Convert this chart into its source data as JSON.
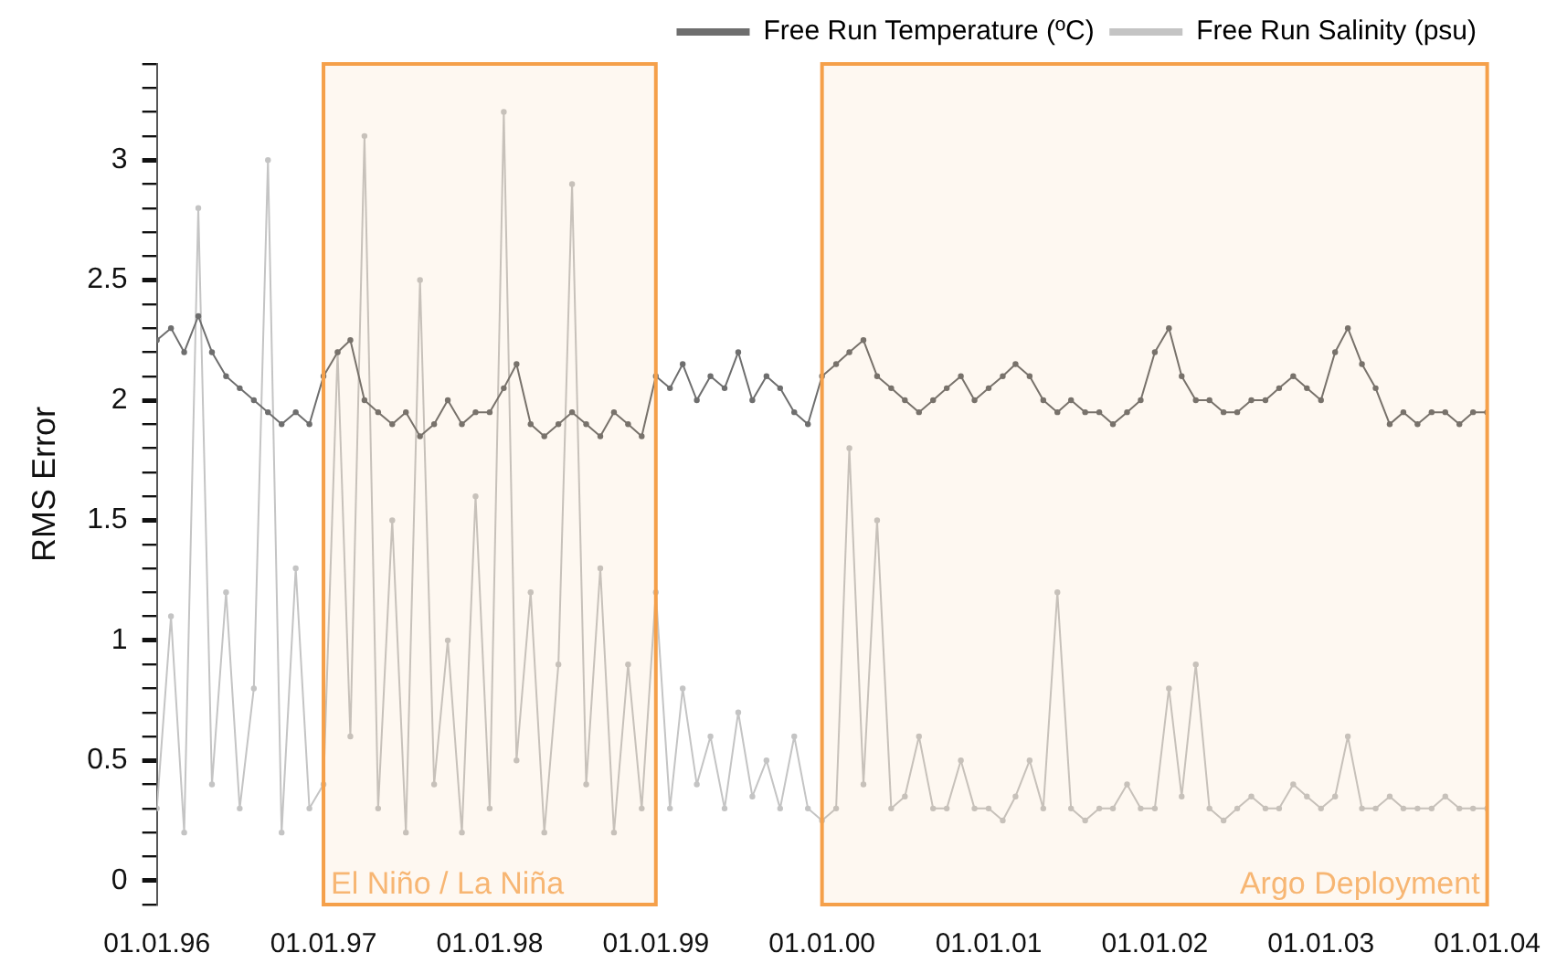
{
  "chart_data": {
    "type": "line",
    "ylabel": "RMS Error",
    "marker": "circle",
    "line_style": "solid",
    "legend": "top right",
    "x": [
      "1996-01",
      "1996-02",
      "1996-03",
      "1996-04",
      "1996-05",
      "1996-06",
      "1996-07",
      "1996-08",
      "1996-09",
      "1996-10",
      "1996-11",
      "1996-12",
      "1997-01",
      "1997-02",
      "1997-03",
      "1997-04",
      "1997-05",
      "1997-06",
      "1997-07",
      "1997-08",
      "1997-09",
      "1997-10",
      "1997-11",
      "1997-12",
      "1998-01",
      "1998-02",
      "1998-03",
      "1998-04",
      "1998-05",
      "1998-06",
      "1998-07",
      "1998-08",
      "1998-09",
      "1998-10",
      "1998-11",
      "1998-12",
      "1999-01",
      "1999-02",
      "1999-03",
      "1999-04",
      "1999-05",
      "1999-06",
      "1999-07",
      "1999-08",
      "1999-09",
      "1999-10",
      "1999-11",
      "1999-12",
      "2000-01",
      "2000-02",
      "2000-03",
      "2000-04",
      "2000-05",
      "2000-06",
      "2000-07",
      "2000-08",
      "2000-09",
      "2000-10",
      "2000-11",
      "2000-12",
      "2001-01",
      "2001-02",
      "2001-03",
      "2001-04",
      "2001-05",
      "2001-06",
      "2001-07",
      "2001-08",
      "2001-09",
      "2001-10",
      "2001-11",
      "2001-12",
      "2002-01",
      "2002-02",
      "2002-03",
      "2002-04",
      "2002-05",
      "2002-06",
      "2002-07",
      "2002-08",
      "2002-09",
      "2002-10",
      "2002-11",
      "2002-12",
      "2003-01",
      "2003-02",
      "2003-03",
      "2003-04",
      "2003-05",
      "2003-06",
      "2003-07",
      "2003-08",
      "2003-09",
      "2003-10",
      "2003-11",
      "2003-12",
      "2004-01"
    ],
    "series": [
      {
        "name": "Free Run Temperature (ºC)",
        "color": "#6e6e6e",
        "values": [
          2.25,
          2.3,
          2.2,
          2.35,
          2.2,
          2.1,
          2.05,
          2.0,
          1.95,
          1.9,
          1.95,
          1.9,
          2.1,
          2.2,
          2.25,
          2.0,
          1.95,
          1.9,
          1.95,
          1.85,
          1.9,
          2.0,
          1.9,
          1.95,
          1.95,
          2.05,
          2.15,
          1.9,
          1.85,
          1.9,
          1.95,
          1.9,
          1.85,
          1.95,
          1.9,
          1.85,
          2.1,
          2.05,
          2.15,
          2.0,
          2.1,
          2.05,
          2.2,
          2.0,
          2.1,
          2.05,
          1.95,
          1.9,
          2.1,
          2.15,
          2.2,
          2.25,
          2.1,
          2.05,
          2.0,
          1.95,
          2.0,
          2.05,
          2.1,
          2.0,
          2.05,
          2.1,
          2.15,
          2.1,
          2.0,
          1.95,
          2.0,
          1.95,
          1.95,
          1.9,
          1.95,
          2.0,
          2.2,
          2.3,
          2.1,
          2.0,
          2.0,
          1.95,
          1.95,
          2.0,
          2.0,
          2.05,
          2.1,
          2.05,
          2.0,
          2.2,
          2.3,
          2.15,
          2.05,
          1.9,
          1.95,
          1.9,
          1.95,
          1.95,
          1.9,
          1.95,
          1.95
        ]
      },
      {
        "name": "Free Run Salinity (psu)",
        "color": "#c4c4c4",
        "values": [
          0.3,
          1.1,
          0.2,
          2.8,
          0.4,
          1.2,
          0.3,
          0.8,
          3.0,
          0.2,
          1.3,
          0.3,
          0.4,
          2.2,
          0.6,
          3.1,
          0.3,
          1.5,
          0.2,
          2.5,
          0.4,
          1.0,
          0.2,
          1.6,
          0.3,
          3.2,
          0.5,
          1.2,
          0.2,
          0.9,
          2.9,
          0.4,
          1.3,
          0.2,
          0.9,
          0.3,
          1.2,
          0.3,
          0.8,
          0.4,
          0.6,
          0.3,
          0.7,
          0.35,
          0.5,
          0.3,
          0.6,
          0.3,
          0.25,
          0.3,
          1.8,
          0.4,
          1.5,
          0.3,
          0.35,
          0.6,
          0.3,
          0.3,
          0.5,
          0.3,
          0.3,
          0.25,
          0.35,
          0.5,
          0.3,
          1.2,
          0.3,
          0.25,
          0.3,
          0.3,
          0.4,
          0.3,
          0.3,
          0.8,
          0.35,
          0.9,
          0.3,
          0.25,
          0.3,
          0.35,
          0.3,
          0.3,
          0.4,
          0.35,
          0.3,
          0.35,
          0.6,
          0.3,
          0.3,
          0.35,
          0.3,
          0.3,
          0.3,
          0.35,
          0.3,
          0.3,
          0.3
        ]
      }
    ],
    "xlim": [
      "1996-01-01",
      "2004-01-01"
    ],
    "xticks": [
      {
        "value": "1996-01-01",
        "label": "01.01.96"
      },
      {
        "value": "1997-01-01",
        "label": "01.01.97"
      },
      {
        "value": "1998-01-01",
        "label": "01.01.98"
      },
      {
        "value": "1999-01-01",
        "label": "01.01.99"
      },
      {
        "value": "2000-01-01",
        "label": "01.01.00"
      },
      {
        "value": "2001-01-01",
        "label": "01.01.01"
      },
      {
        "value": "2002-01-01",
        "label": "01.01.02"
      },
      {
        "value": "2003-01-01",
        "label": "01.01.03"
      },
      {
        "value": "2004-01-01",
        "label": "01.01.04"
      }
    ],
    "ylim": [
      -0.1,
      3.4
    ],
    "yticks": [
      {
        "value": -0.1,
        "label": null
      },
      0,
      {
        "value": 0.1,
        "label": null
      },
      {
        "value": 0.2,
        "label": null
      },
      {
        "value": 0.3,
        "label": null
      },
      {
        "value": 0.4,
        "label": null
      },
      0.5,
      {
        "value": 0.6,
        "label": null
      },
      {
        "value": 0.7,
        "label": null
      },
      {
        "value": 0.8,
        "label": null
      },
      {
        "value": 0.9,
        "label": null
      },
      1,
      {
        "value": 1.1,
        "label": null
      },
      {
        "value": 1.2,
        "label": null
      },
      {
        "value": 1.3,
        "label": null
      },
      {
        "value": 1.4,
        "label": null
      },
      1.5,
      {
        "value": 1.6,
        "label": null
      },
      {
        "value": 1.7,
        "label": null
      },
      {
        "value": 1.8,
        "label": null
      },
      {
        "value": 1.9,
        "label": null
      },
      2,
      {
        "value": 2.1,
        "label": null
      },
      {
        "value": 2.2,
        "label": null
      },
      {
        "value": 2.3,
        "label": null
      },
      {
        "value": 2.4,
        "label": null
      },
      2.5,
      {
        "value": 2.6,
        "label": null
      },
      {
        "value": 2.7,
        "label": null
      },
      {
        "value": 2.8,
        "label": null
      },
      {
        "value": 2.9,
        "label": null
      },
      3,
      {
        "value": 3.1,
        "label": null
      },
      {
        "value": 3.2,
        "label": null
      },
      {
        "value": 3.3,
        "label": null
      },
      {
        "value": 3.4,
        "label": null
      }
    ],
    "bands": [
      {
        "axis": "x",
        "from": "1997-01-01",
        "to": "1999-01-01",
        "label": "El Niño / La Niña",
        "color": "#f5a04a"
      },
      {
        "axis": "x",
        "from": "2000-01-01",
        "to": "2004-01-01",
        "label": "Argo Deployment",
        "color": "#f5a04a"
      }
    ]
  }
}
